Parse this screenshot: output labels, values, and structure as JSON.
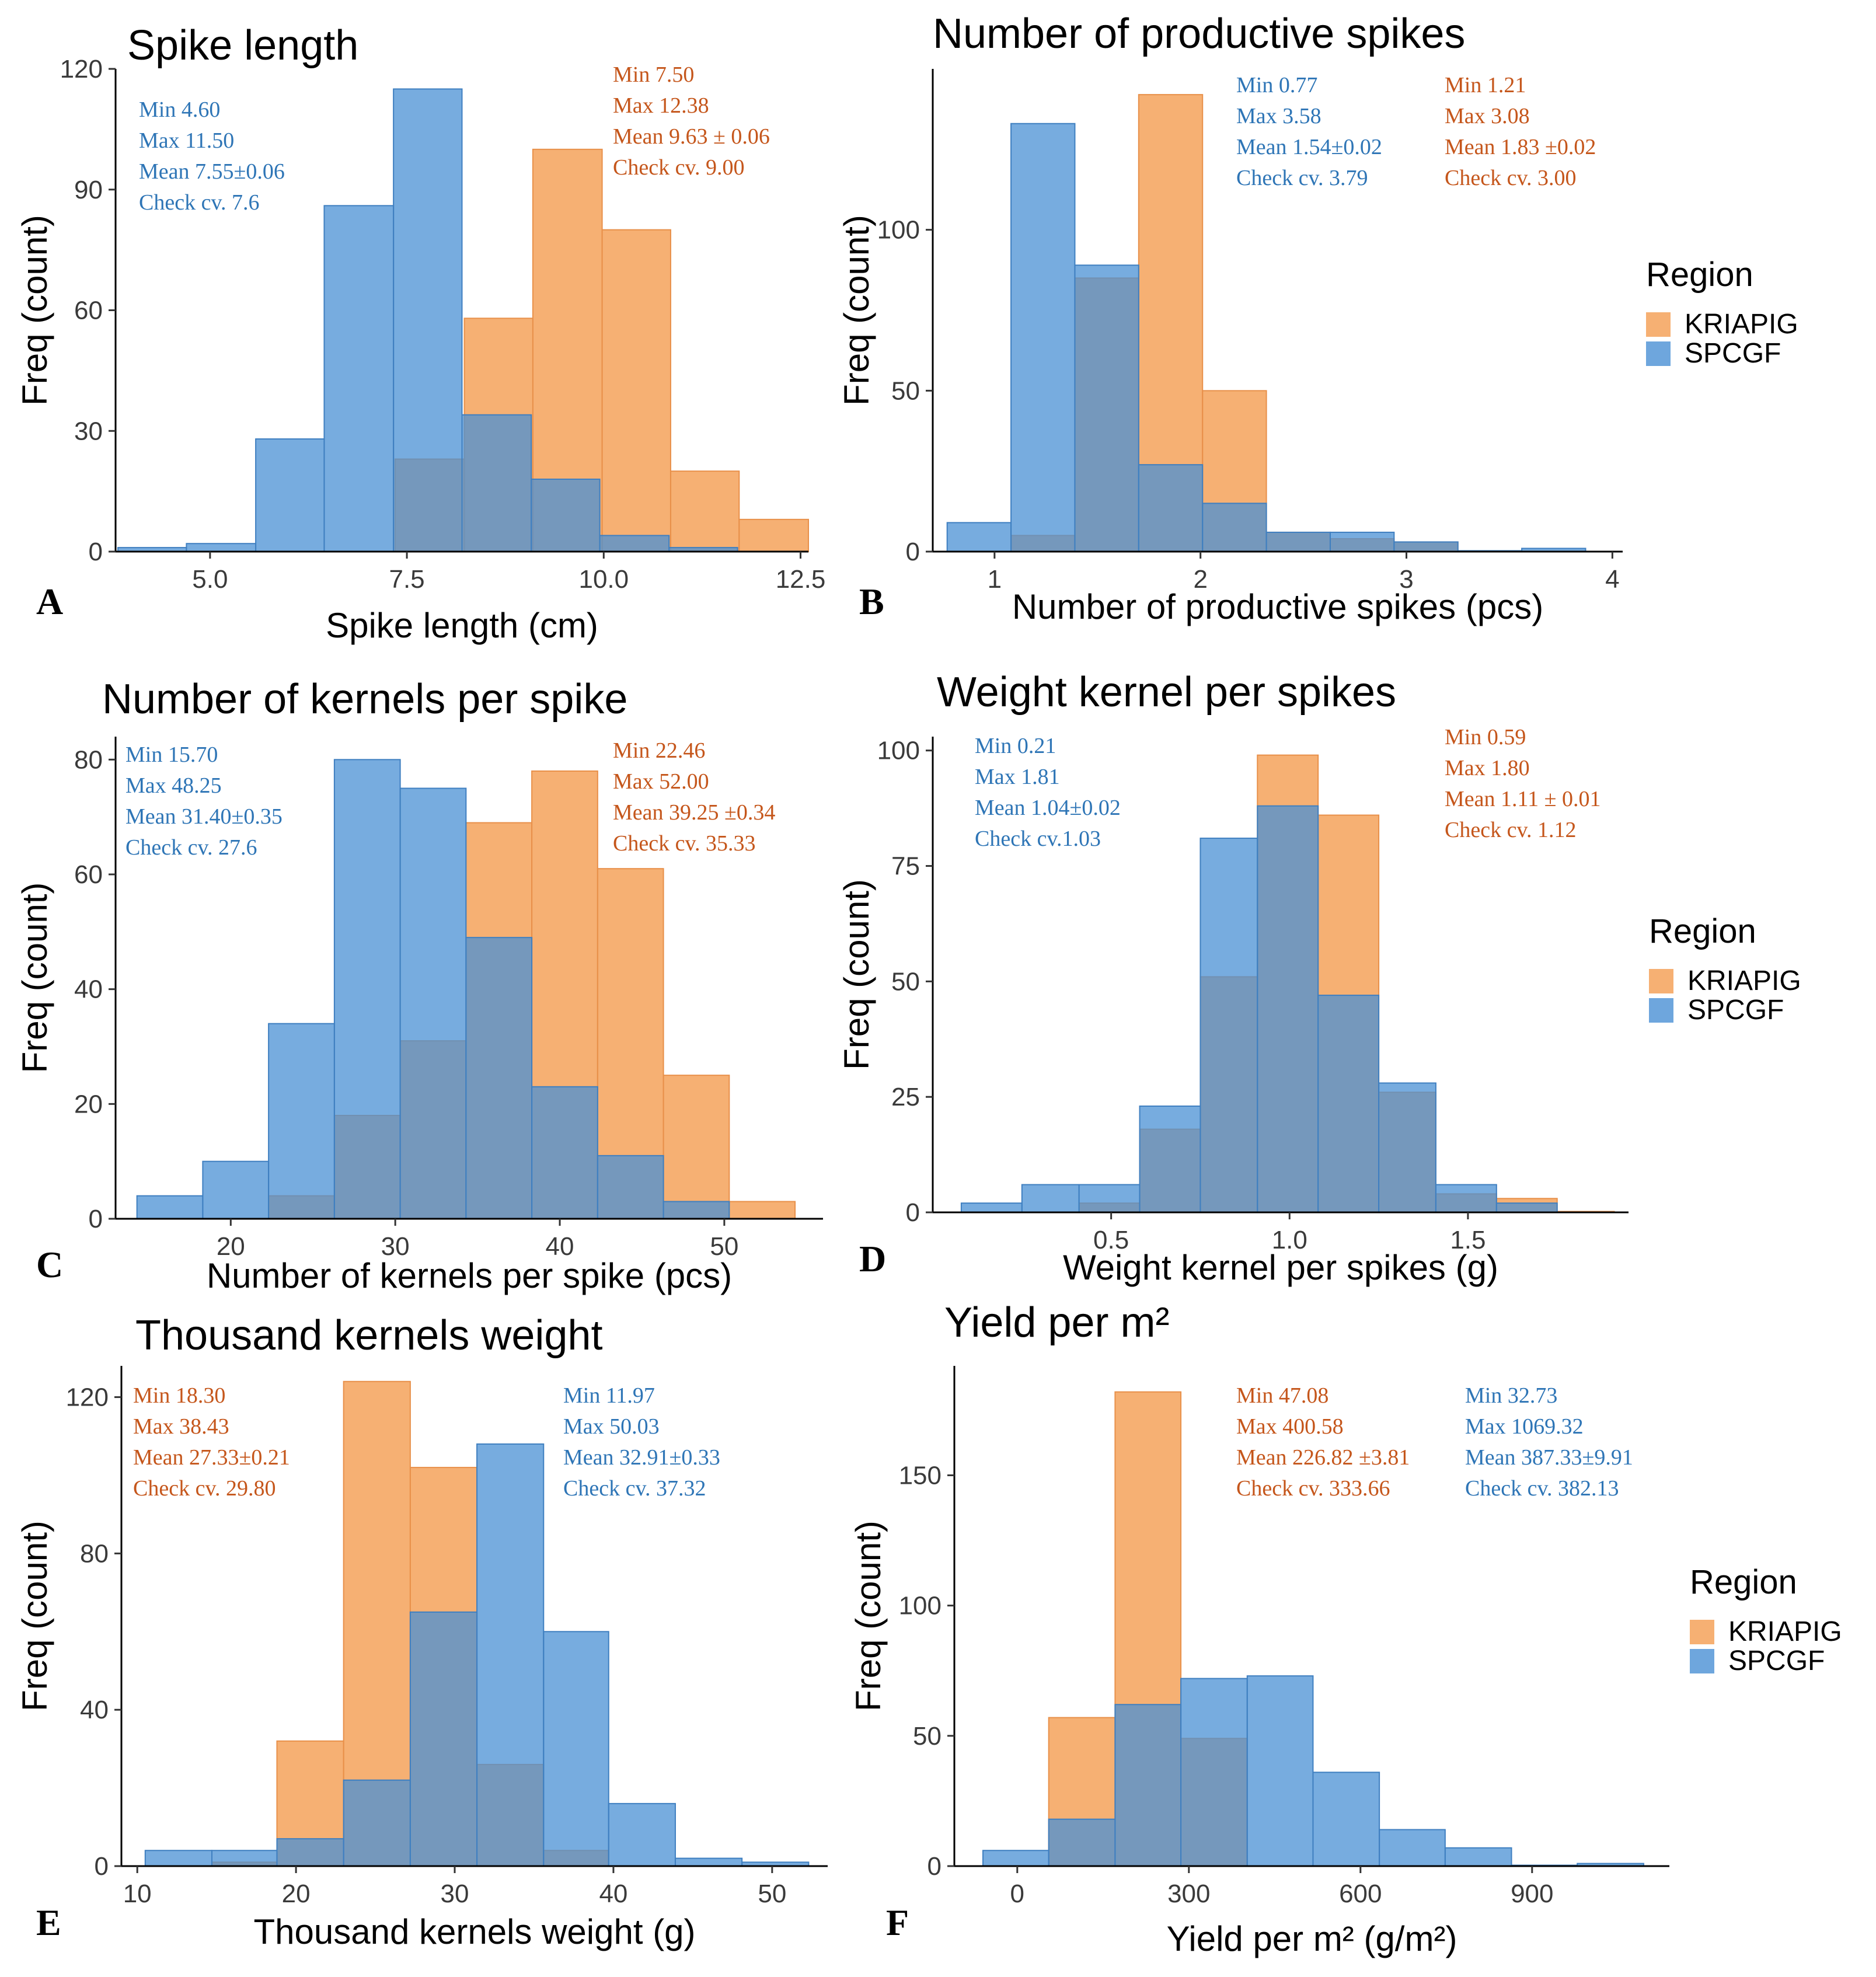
{
  "colors": {
    "kriapig": "#f4a25b",
    "spcgf": "#4a90d4",
    "kriapig_text": "#c5561b",
    "spcgf_text": "#2e75b6"
  },
  "legend": {
    "title": "Region",
    "items": [
      "KRIAPIG",
      "SPCGF"
    ]
  },
  "chart_data": [
    {
      "id": "A",
      "type": "bar",
      "title": "Spike length",
      "xlabel": "Spike length (cm)",
      "ylabel": "Freq (count)",
      "xlim": [
        3.8,
        12.6
      ],
      "ylim": [
        0,
        120
      ],
      "xticks": [
        5.0,
        7.5,
        10.0,
        12.5
      ],
      "xtick_labels": [
        "5.0",
        "7.5",
        "10.0",
        "12.5"
      ],
      "yticks": [
        0,
        30,
        60,
        90,
        120
      ],
      "ytick_labels": [
        "0",
        "30",
        "60",
        "90",
        "120"
      ],
      "series": [
        {
          "name": "KRIAPIG",
          "bins": [
            [
              7.35,
              8.23
            ],
            [
              8.23,
              9.1
            ],
            [
              9.1,
              9.98
            ],
            [
              9.98,
              10.85
            ],
            [
              10.85,
              11.72
            ],
            [
              11.72,
              12.6
            ]
          ],
          "values": [
            23,
            58,
            100,
            80,
            20,
            8
          ]
        },
        {
          "name": "SPCGF",
          "bins": [
            [
              3.83,
              4.7
            ],
            [
              4.7,
              5.58
            ],
            [
              5.58,
              6.45
            ],
            [
              6.45,
              7.33
            ],
            [
              7.33,
              8.2
            ],
            [
              8.2,
              9.08
            ],
            [
              9.08,
              9.95
            ],
            [
              9.95,
              10.83
            ],
            [
              10.83,
              11.7
            ]
          ],
          "values": [
            1,
            2,
            28,
            86,
            115,
            34,
            18,
            4,
            1
          ]
        }
      ],
      "annotations": [
        {
          "series": "SPCGF",
          "lines": [
            "Min  4.60",
            "Max  11.50",
            "Mean  7.55±0.06",
            "Check cv.  7.6"
          ]
        },
        {
          "series": "KRIAPIG",
          "lines": [
            "Min  7.50",
            "Max  12.38",
            "Mean  9.63 ± 0.06",
            "Check cv.  9.00"
          ]
        }
      ]
    },
    {
      "id": "B",
      "type": "bar",
      "title": "Number of productive spikes",
      "xlabel": "Number of productive spikes (pcs)",
      "ylabel": "Freq (count)",
      "xlim": [
        0.7,
        4.05
      ],
      "ylim": [
        0,
        150
      ],
      "xticks": [
        1,
        2,
        3,
        4
      ],
      "xtick_labels": [
        "1",
        "2",
        "3",
        "4"
      ],
      "yticks": [
        0,
        50,
        100
      ],
      "ytick_labels": [
        "0",
        "50",
        "100"
      ],
      "series": [
        {
          "name": "KRIAPIG",
          "bins": [
            [
              1.08,
              1.39
            ],
            [
              1.39,
              1.7
            ],
            [
              1.7,
              2.01
            ],
            [
              2.01,
              2.32
            ],
            [
              2.32,
              2.63
            ],
            [
              2.63,
              2.94
            ],
            [
              2.94,
              3.25
            ]
          ],
          "values": [
            5,
            85,
            142,
            50,
            6,
            4,
            3
          ]
        },
        {
          "name": "SPCGF",
          "bins": [
            [
              0.77,
              1.08
            ],
            [
              1.08,
              1.39
            ],
            [
              1.39,
              1.7
            ],
            [
              1.7,
              2.01
            ],
            [
              2.01,
              2.32
            ],
            [
              2.32,
              2.63
            ],
            [
              2.63,
              2.94
            ],
            [
              2.94,
              3.25
            ],
            [
              3.25,
              3.56
            ],
            [
              3.56,
              3.87
            ]
          ],
          "values": [
            9,
            133,
            89,
            27,
            15,
            6,
            6,
            3,
            0,
            1
          ]
        }
      ],
      "annotations": [
        {
          "series": "SPCGF",
          "lines": [
            "Min  0.77",
            "Max  3.58",
            "Mean  1.54±0.02",
            "Check cv.  3.79"
          ]
        },
        {
          "series": "KRIAPIG",
          "lines": [
            "Min  1.21",
            "Max  3.08",
            "Mean  1.83 ±0.02",
            "Check cv.  3.00"
          ]
        }
      ]
    },
    {
      "id": "C",
      "type": "bar",
      "title": "Number of kernels per spike",
      "xlabel": "Number of kernels per spike (pcs)",
      "ylabel": "Freq (count)",
      "xlim": [
        13.0,
        56.0
      ],
      "ylim": [
        0,
        84
      ],
      "xticks": [
        20,
        30,
        40,
        50
      ],
      "xtick_labels": [
        "20",
        "30",
        "40",
        "50"
      ],
      "yticks": [
        0,
        20,
        40,
        60,
        80
      ],
      "ytick_labels": [
        "0",
        "20",
        "40",
        "60",
        "80"
      ],
      "series": [
        {
          "name": "KRIAPIG",
          "bins": [
            [
              22.3,
              26.3
            ],
            [
              26.3,
              30.3
            ],
            [
              30.3,
              34.3
            ],
            [
              34.3,
              38.3
            ],
            [
              38.3,
              42.3
            ],
            [
              42.3,
              46.3
            ],
            [
              46.3,
              50.3
            ],
            [
              50.3,
              54.3
            ]
          ],
          "values": [
            4,
            18,
            31,
            69,
            78,
            61,
            25,
            3
          ]
        },
        {
          "name": "SPCGF",
          "bins": [
            [
              14.3,
              18.3
            ],
            [
              18.3,
              22.3
            ],
            [
              22.3,
              26.3
            ],
            [
              26.3,
              30.3
            ],
            [
              30.3,
              34.3
            ],
            [
              34.3,
              38.3
            ],
            [
              38.3,
              42.3
            ],
            [
              42.3,
              46.3
            ],
            [
              46.3,
              50.3
            ]
          ],
          "values": [
            4,
            10,
            34,
            80,
            75,
            49,
            23,
            11,
            3
          ]
        }
      ],
      "annotations": [
        {
          "series": "SPCGF",
          "lines": [
            "Min  15.70",
            "Max  48.25",
            "Mean  31.40±0.35",
            "Check cv.  27.6"
          ]
        },
        {
          "series": "KRIAPIG",
          "lines": [
            "Min  22.46",
            "Max  52.00",
            "Mean  39.25 ±0.34",
            "Check cv.   35.33"
          ]
        }
      ]
    },
    {
      "id": "D",
      "type": "bar",
      "title": "Weight kernel per spikes",
      "xlabel": "Weight kernel per spikes (g)",
      "ylabel": "Freq (count)",
      "xlim": [
        0.0,
        1.95
      ],
      "ylim": [
        0,
        103
      ],
      "xticks": [
        0.5,
        1.0,
        1.5
      ],
      "xtick_labels": [
        "0.5",
        "1.0",
        "1.5"
      ],
      "yticks": [
        0,
        25,
        50,
        75,
        100
      ],
      "ytick_labels": [
        "0",
        "25",
        "50",
        "75",
        "100"
      ],
      "series": [
        {
          "name": "KRIAPIG",
          "bins": [
            [
              0.41,
              0.58
            ],
            [
              0.58,
              0.75
            ],
            [
              0.75,
              0.91
            ],
            [
              0.91,
              1.08
            ],
            [
              1.08,
              1.25
            ],
            [
              1.25,
              1.41
            ],
            [
              1.41,
              1.58
            ],
            [
              1.58,
              1.75
            ],
            [
              1.75,
              1.91
            ]
          ],
          "values": [
            2,
            18,
            51,
            99,
            86,
            26,
            4,
            3,
            0
          ]
        },
        {
          "name": "SPCGF",
          "bins": [
            [
              0.08,
              0.25
            ],
            [
              0.25,
              0.41
            ],
            [
              0.41,
              0.58
            ],
            [
              0.58,
              0.75
            ],
            [
              0.75,
              0.91
            ],
            [
              0.91,
              1.08
            ],
            [
              1.08,
              1.25
            ],
            [
              1.25,
              1.41
            ],
            [
              1.41,
              1.58
            ],
            [
              1.58,
              1.75
            ]
          ],
          "values": [
            2,
            6,
            6,
            23,
            81,
            88,
            47,
            28,
            6,
            2
          ]
        }
      ],
      "annotations": [
        {
          "series": "SPCGF",
          "lines": [
            "Min  0.21",
            "Max  1.81",
            "Mean  1.04±0.02",
            "Check cv.1.03"
          ]
        },
        {
          "series": "KRIAPIG",
          "lines": [
            "Min  0.59",
            "Max  1.80",
            "Mean  1.11 ± 0.01",
            "Check cv.  1.12"
          ]
        }
      ]
    },
    {
      "id": "E",
      "type": "bar",
      "title": "Thousand kernels weight",
      "xlabel": "Thousand kernels weight (g)",
      "ylabel": "Freq (count)",
      "xlim": [
        9.0,
        53.5
      ],
      "ylim": [
        0,
        128
      ],
      "xticks": [
        10,
        20,
        30,
        40,
        50
      ],
      "xtick_labels": [
        "10",
        "20",
        "30",
        "40",
        "50"
      ],
      "yticks": [
        0,
        40,
        80,
        120
      ],
      "ytick_labels": [
        "0",
        "40",
        "80",
        "120"
      ],
      "series": [
        {
          "name": "KRIAPIG",
          "bins": [
            [
              14.7,
              18.8
            ],
            [
              18.8,
              23.0
            ],
            [
              23.0,
              27.2
            ],
            [
              27.2,
              31.4
            ],
            [
              31.4,
              35.6
            ],
            [
              35.6,
              39.7
            ]
          ],
          "values": [
            1,
            32,
            124,
            102,
            26,
            4
          ]
        },
        {
          "name": "SPCGF",
          "bins": [
            [
              10.5,
              14.7
            ],
            [
              14.7,
              18.8
            ],
            [
              18.8,
              23.0
            ],
            [
              23.0,
              27.2
            ],
            [
              27.2,
              31.4
            ],
            [
              31.4,
              35.6
            ],
            [
              35.6,
              39.7
            ],
            [
              39.7,
              43.9
            ],
            [
              43.9,
              48.1
            ],
            [
              48.1,
              52.3
            ]
          ],
          "values": [
            4,
            4,
            7,
            22,
            65,
            108,
            60,
            16,
            2,
            1
          ]
        }
      ],
      "annotations": [
        {
          "series": "KRIAPIG",
          "lines": [
            "Min  18.30",
            "Max  38.43",
            "Mean  27.33±0.21",
            "Check cv.  29.80"
          ]
        },
        {
          "series": "SPCGF",
          "lines": [
            "Min   11.97",
            "Max  50.03",
            "Mean  32.91±0.33",
            "Check cv.  37.32"
          ]
        }
      ]
    },
    {
      "id": "F",
      "type": "bar",
      "title": "Yield per m²",
      "xlabel": "Yield per m² (g/m²)",
      "ylabel": "Freq (count)",
      "xlim": [
        -110,
        1140
      ],
      "ylim": [
        0,
        192
      ],
      "xticks": [
        0,
        300,
        600,
        900
      ],
      "xtick_labels": [
        "0",
        "300",
        "600",
        "900"
      ],
      "yticks": [
        0,
        50,
        100,
        150
      ],
      "ytick_labels": [
        "0",
        "50",
        "100",
        "150"
      ],
      "series": [
        {
          "name": "KRIAPIG",
          "bins": [
            [
              55,
              171
            ],
            [
              171,
              286
            ],
            [
              286,
              402
            ]
          ],
          "values": [
            57,
            182,
            49
          ]
        },
        {
          "name": "SPCGF",
          "bins": [
            [
              -60,
              55
            ],
            [
              55,
              171
            ],
            [
              171,
              286
            ],
            [
              286,
              402
            ],
            [
              402,
              517
            ],
            [
              517,
              633
            ],
            [
              633,
              748
            ],
            [
              748,
              864
            ],
            [
              864,
              979
            ],
            [
              979,
              1095
            ]
          ],
          "values": [
            6,
            18,
            62,
            72,
            73,
            36,
            14,
            7,
            0,
            1
          ]
        }
      ],
      "annotations": [
        {
          "series": "KRIAPIG",
          "lines": [
            "Min  47.08",
            "Max  400.58",
            "Mean  226.82 ±3.81",
            "Check cv.  333.66"
          ]
        },
        {
          "series": "SPCGF",
          "lines": [
            "Min   32.73",
            "Max   1069.32",
            "Mean  387.33±9.91",
            "Check cv.  382.13"
          ]
        }
      ]
    }
  ]
}
